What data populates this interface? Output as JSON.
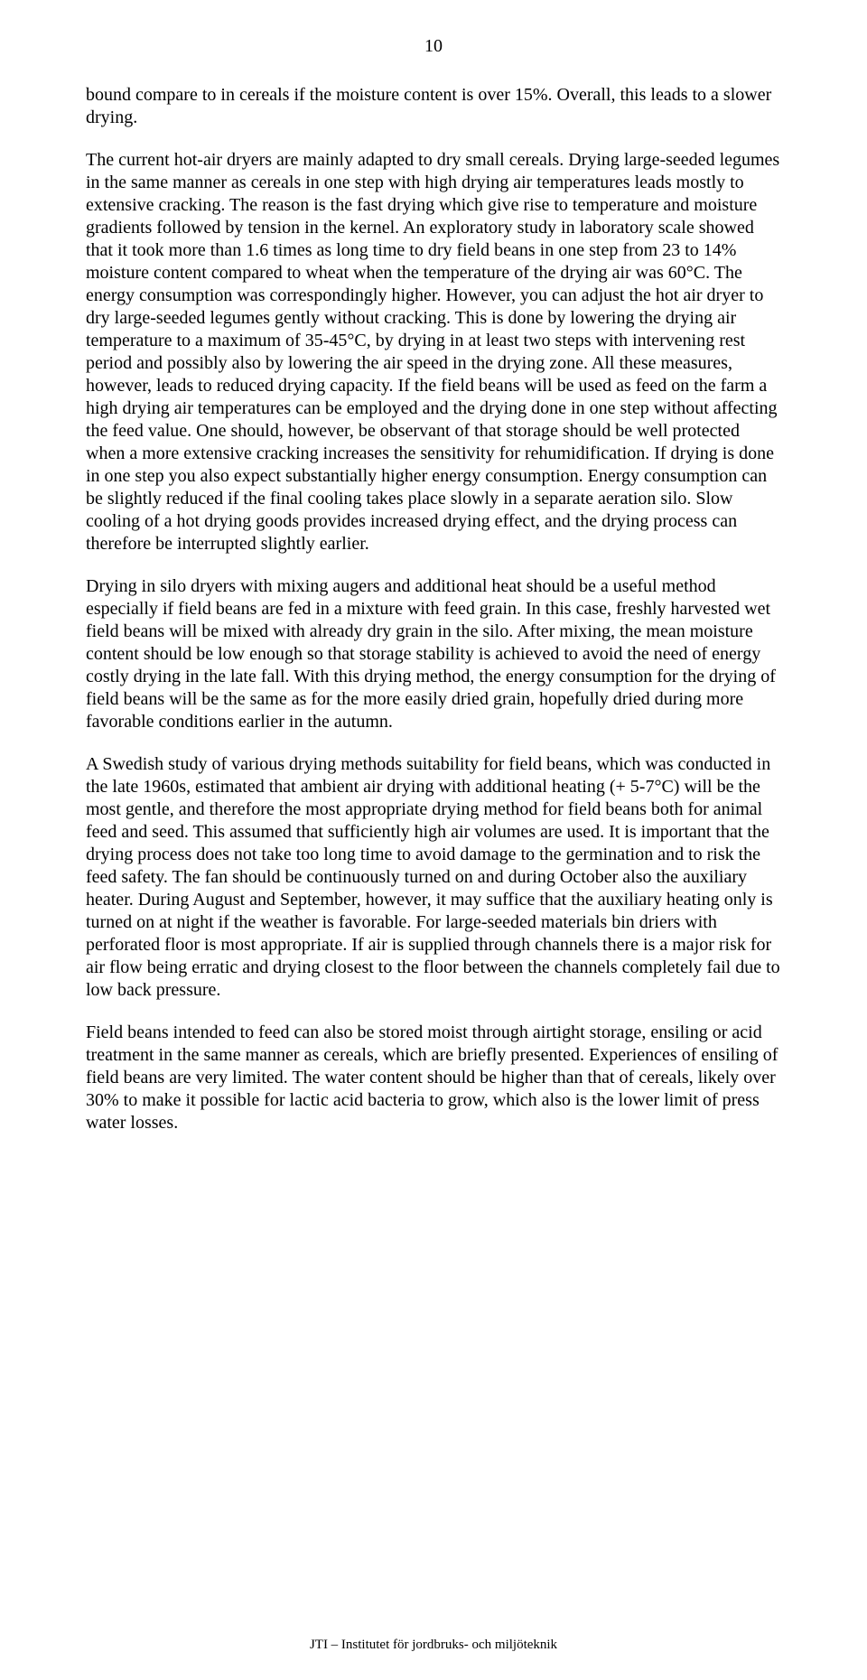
{
  "page": {
    "number": "10",
    "footer": "JTI – Institutet för jordbruks- och miljöteknik"
  },
  "paragraphs": {
    "p1": "bound compare to in cereals if the moisture content is over 15%. Overall, this leads to a slower drying.",
    "p2": "The current hot-air dryers are mainly adapted to dry small cereals. Drying large-seeded legumes in the same manner as cereals in one step with high drying air temperatures leads mostly to extensive cracking. The reason is the fast drying which give rise to temperature and moisture gradients followed by tension in the kernel. An exploratory study in laboratory scale showed that it took more than 1.6 times as long time to dry field beans in one step from 23 to 14% moisture content compared to wheat when the temperature of the drying air was 60°C. The energy consumption was correspondingly higher. However, you can adjust the hot air dryer to dry large-seeded legumes gently without cracking. This is done by lowering the drying air temperature to a maximum of 35-45°C, by drying in at least two steps with intervening rest period and possibly also by lowering the air speed in the drying zone. All these measures, however, leads to reduced drying capacity. If the field beans will be used as feed on the farm a high drying air temperatures can be employed and the drying done in one step without affecting the feed value. One should, however, be observant of that storage should be well protected when a more extensive cracking increases the sensitivity for rehumidification. If drying is done in one step you also expect substantially higher energy consumption. Energy consumption can be slightly reduced if the final cooling takes place slowly in a separate aeration silo. Slow cooling of a hot drying goods provides increased drying effect, and the drying process can therefore be interrupted slightly earlier.",
    "p3": "Drying in silo dryers with mixing augers and additional heat should be a useful method especially if field beans are fed in a mixture with feed grain. In this case, freshly harvested wet field beans will be mixed with already dry grain in the silo. After mixing, the mean moisture content should be low enough so that storage stability is achieved to avoid the need of energy costly drying in the late fall. With this drying method, the energy consumption for the drying of field beans will be the same as for the more easily dried grain, hopefully dried during more favorable conditions earlier in the autumn.",
    "p4": "A Swedish study of various drying methods suitability for field beans, which was conducted in the late 1960s, estimated that ambient air drying with additional heating (+ 5-7°C) will be the most gentle, and therefore the most appropriate drying method for field beans both for animal feed and seed. This assumed that sufficiently high air volumes are used. It is important that the drying process does not take too long time to avoid damage to the germination and to risk the feed safety. The fan should be continuously turned on and during October also the auxiliary heater. During August and September, however, it may suffice that the auxiliary heating only is turned on at night if the weather is favorable. For large-seeded materials bin driers with perforated floor is most appropriate. If air is supplied through channels there is a major risk for air flow being erratic and drying closest to the floor between the channels completely fail due to low back pressure.",
    "p5": "Field beans intended to feed can also be stored moist through airtight storage, ensiling or acid treatment in the same manner as cereals, which are briefly presented. Experiences of ensiling of field beans are very limited. The water content should be higher than that of cereals, likely over 30% to make it possible for lactic acid bacteria to grow, which also is the lower limit of press water losses."
  },
  "styles": {
    "background_color": "#ffffff",
    "text_color": "#000000",
    "font_family": "Times New Roman",
    "body_font_size": 20,
    "page_number_font_size": 20,
    "footer_font_size": 15,
    "line_height": 1.25,
    "paragraph_spacing": 22
  }
}
